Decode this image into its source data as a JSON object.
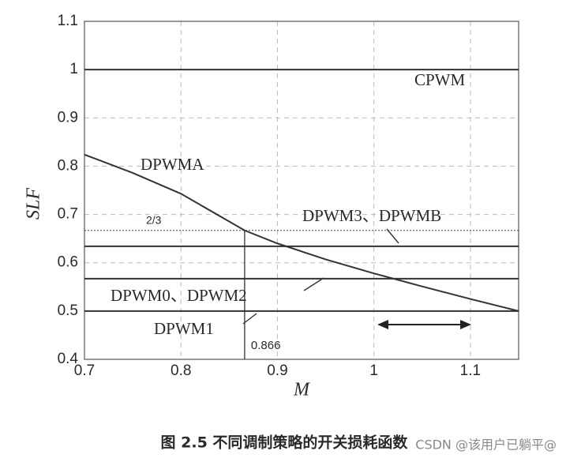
{
  "chart_data": {
    "type": "line",
    "caption": "图 2.5  不同调制策略的开关损耗函数",
    "watermark": "CSDN @该用户已躺平@",
    "x_label": "M",
    "y_label": "SLF",
    "xlim": [
      0.7,
      1.15
    ],
    "ylim": [
      0.4,
      1.1
    ],
    "xticks": [
      0.7,
      0.8,
      0.9,
      1,
      1.1
    ],
    "yticks": [
      0.4,
      0.5,
      0.6,
      0.7,
      0.8,
      0.9,
      1,
      1.1
    ],
    "grid": true,
    "series": [
      {
        "name": "CPWM",
        "color": "#333333",
        "x": [
          0.7,
          1.15
        ],
        "values": [
          1,
          1
        ]
      },
      {
        "name": "DPWMA",
        "color": "#333333",
        "x": [
          0.7,
          0.75,
          0.8,
          0.866,
          0.9,
          0.95,
          1.0,
          1.05,
          1.1,
          1.15
        ],
        "values": [
          0.824,
          0.786,
          0.743,
          0.667,
          0.64,
          0.607,
          0.578,
          0.551,
          0.525,
          0.5
        ]
      },
      {
        "name": "DPWM3、DPWMB",
        "color": "#333333",
        "x": [
          0.7,
          1.15
        ],
        "values": [
          0.634,
          0.634
        ]
      },
      {
        "name": "DPWM0、DPWM2",
        "color": "#333333",
        "x": [
          0.7,
          1.15
        ],
        "values": [
          0.567,
          0.567
        ]
      },
      {
        "name": "DPWM1",
        "color": "#333333",
        "x": [
          0.7,
          1.15
        ],
        "values": [
          0.5,
          0.5
        ]
      }
    ],
    "reference_lines": [
      {
        "label": "2/3",
        "y": 0.667
      },
      {
        "label": "0.866",
        "x": 0.866
      }
    ]
  }
}
